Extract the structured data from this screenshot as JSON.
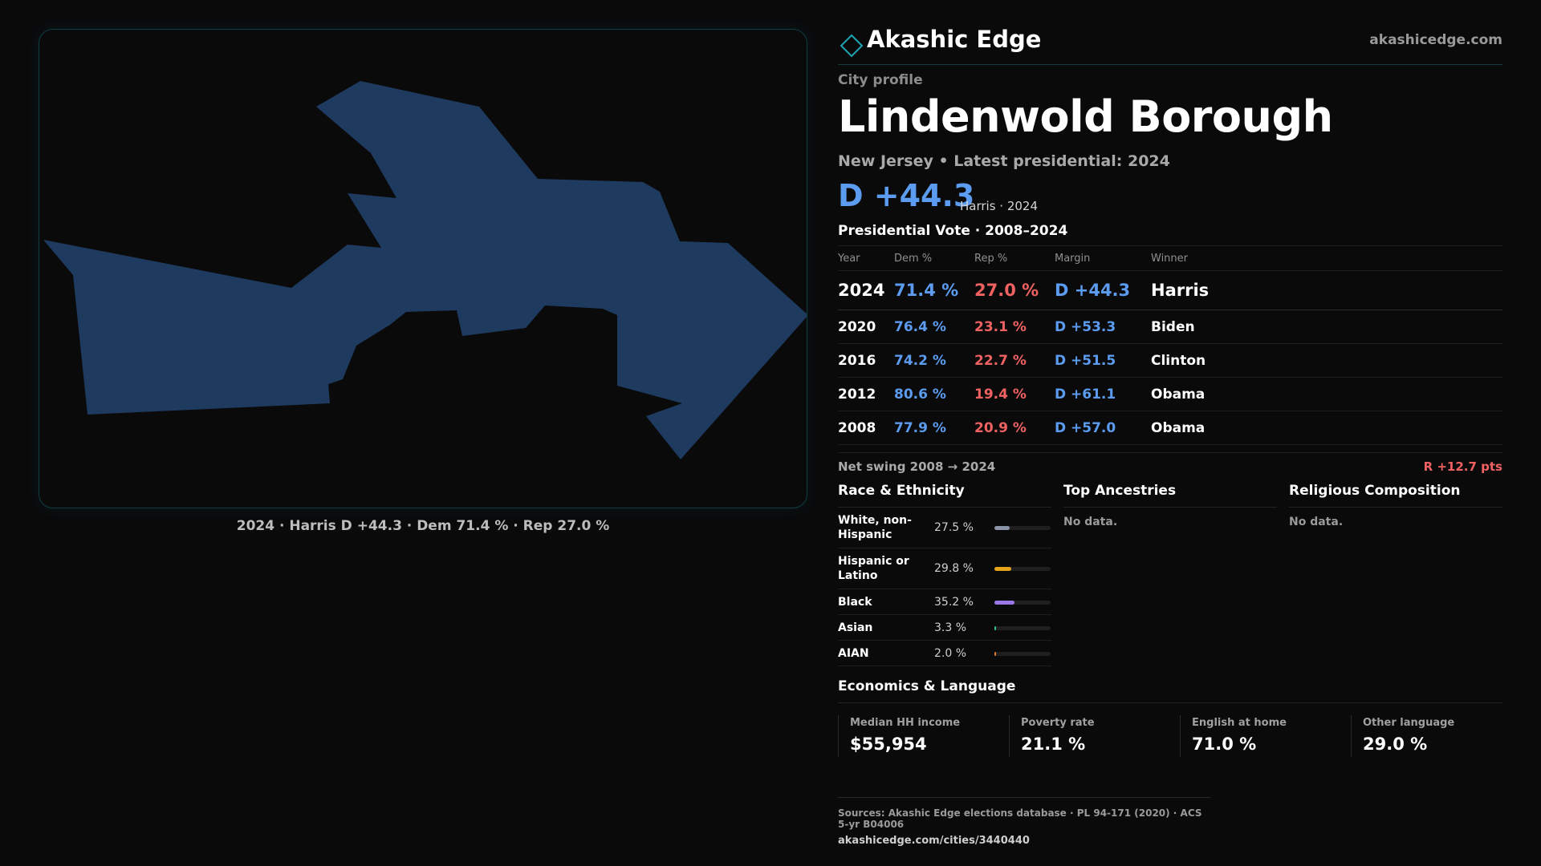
{
  "map": {
    "shape_fill": "#1f3a5f",
    "caption": "2024 · Harris D +44.3 · Dem 71.4 % · Rep 27.0 %"
  },
  "brand": {
    "name": "Akashic Edge",
    "site": "akashicedge.com",
    "icon": "diamond-outline-icon",
    "accent": "#1fa4b4"
  },
  "profile": {
    "kicker": "City profile",
    "city": "Lindenwold Borough",
    "subline": "New Jersey • Latest presidential: 2024",
    "headline_margin": "D +44.3",
    "headline_note": "Harris · 2024"
  },
  "presidential": {
    "title": "Presidential Vote · 2008–2024",
    "headers": [
      "Year",
      "Dem %",
      "Rep %",
      "Margin",
      "Winner"
    ],
    "rows": [
      {
        "year": "2024",
        "dem": "71.4 %",
        "rep": "27.0 %",
        "margin": "D +44.3",
        "winner": "Harris"
      },
      {
        "year": "2020",
        "dem": "76.4 %",
        "rep": "23.1 %",
        "margin": "D +53.3",
        "winner": "Biden"
      },
      {
        "year": "2016",
        "dem": "74.2 %",
        "rep": "22.7 %",
        "margin": "D +51.5",
        "winner": "Clinton"
      },
      {
        "year": "2012",
        "dem": "80.6 %",
        "rep": "19.4 %",
        "margin": "D +61.1",
        "winner": "Obama"
      },
      {
        "year": "2008",
        "dem": "77.9 %",
        "rep": "20.9 %",
        "margin": "D +57.0",
        "winner": "Obama"
      }
    ],
    "swing_label": "Net swing 2008 → 2024",
    "swing_value": "R +12.7 pts"
  },
  "race": {
    "title": "Race & Ethnicity",
    "items": [
      {
        "name": "White, non-Hispanic",
        "value": "27.5 %",
        "pct": 27.5,
        "color": "#8a94a6"
      },
      {
        "name": "Hispanic or Latino",
        "value": "29.8 %",
        "pct": 29.8,
        "color": "#e5a31a"
      },
      {
        "name": "Black",
        "value": "35.2 %",
        "pct": 35.2,
        "color": "#9a78e8"
      },
      {
        "name": "Asian",
        "value": "3.3 %",
        "pct": 3.3,
        "color": "#2fbf9a"
      },
      {
        "name": "AIAN",
        "value": "2.0 %",
        "pct": 2.0,
        "color": "#e0782a"
      }
    ]
  },
  "ancestries": {
    "title": "Top Ancestries",
    "empty": "No data."
  },
  "religion": {
    "title": "Religious Composition",
    "empty": "No data."
  },
  "economics": {
    "title": "Economics & Language",
    "cards": [
      {
        "label": "Median HH income",
        "value": "$55,954"
      },
      {
        "label": "Poverty rate",
        "value": "21.1 %"
      },
      {
        "label": "English at home",
        "value": "71.0 %"
      },
      {
        "label": "Other language",
        "value": "29.0 %"
      }
    ]
  },
  "footer": {
    "sources": "Sources: Akashic Edge elections database · PL 94-171 (2020) · ACS 5-yr B04006",
    "url": "akashicedge.com/cities/3440440"
  }
}
